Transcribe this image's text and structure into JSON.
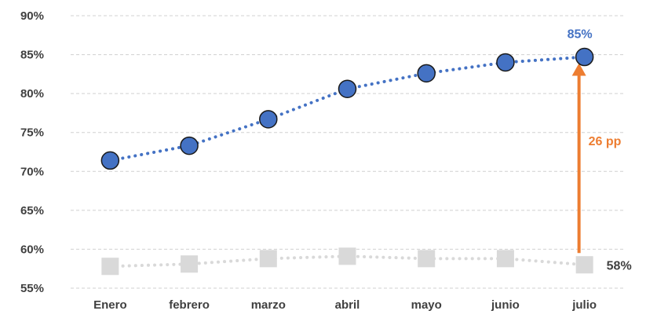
{
  "chart_data": {
    "type": "line",
    "categories": [
      "Enero",
      "febrero",
      "marzo",
      "abril",
      "mayo",
      "junio",
      "julio"
    ],
    "ylim": [
      55,
      90
    ],
    "yticks": [
      55,
      60,
      65,
      70,
      75,
      80,
      85,
      90
    ],
    "ytick_labels": [
      "55%",
      "60%",
      "65%",
      "70%",
      "75%",
      "80%",
      "85%",
      "90%"
    ],
    "grid": true,
    "series": [
      {
        "values": [
          71.4,
          73.3,
          76.7,
          80.6,
          82.6,
          84.0,
          84.7
        ],
        "color": "#4472C4",
        "marker": "circle"
      },
      {
        "values": [
          57.8,
          58.1,
          58.8,
          59.1,
          58.8,
          58.8,
          58.0
        ],
        "color": "#D9D9D9",
        "marker": "square"
      }
    ],
    "annotations": {
      "top_value_label": "85%",
      "bottom_value_label": "58%",
      "gap_label": "26 pp",
      "top_color": "#4472C4",
      "bottom_color": "#404040",
      "arrow_color": "#ED7D31"
    }
  }
}
